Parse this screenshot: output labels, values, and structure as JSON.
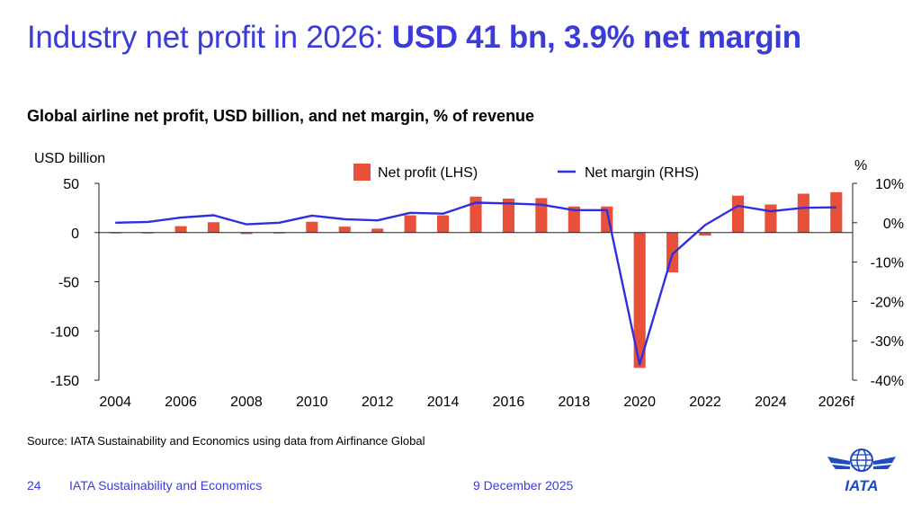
{
  "headline": {
    "normal": "Industry net profit in 2026: ",
    "bold": "USD 41 bn, 3.9% net margin"
  },
  "subtitle": "Global airline net profit, USD billion, and net margin, % of revenue",
  "source": "Source: IATA Sustainability and Economics using data from Airfinance Global",
  "footer": {
    "page_number": "24",
    "department": "IATA Sustainability and Economics",
    "date": "9 December 2025",
    "logo_text": "IATA"
  },
  "colors": {
    "headline": "#3b3bd8",
    "bars": "#e8503a",
    "line": "#2f2fe0",
    "footer": "#3b3bd8",
    "logo": "#1f4bc4"
  },
  "chart_data": {
    "type": "bar",
    "title": "Global airline net profit, USD billion, and net margin, % of revenue",
    "categories": [
      "2004",
      "2005",
      "2006",
      "2007",
      "2008",
      "2009",
      "2010",
      "2011",
      "2012",
      "2013",
      "2014",
      "2015",
      "2016",
      "2017",
      "2018",
      "2019",
      "2020",
      "2021",
      "2022",
      "2023",
      "2024",
      "2025",
      "2026f"
    ],
    "x_tick_labels": [
      "2004",
      "2006",
      "2008",
      "2010",
      "2012",
      "2014",
      "2016",
      "2018",
      "2020",
      "2022",
      "2024",
      "2026f"
    ],
    "y_left": {
      "label": "USD billion",
      "range": [
        -150,
        50
      ],
      "ticks": [
        50,
        0,
        -50,
        -100,
        -150
      ],
      "tick_labels": [
        "50",
        "0",
        "-50",
        "-100",
        "-150"
      ]
    },
    "y_right": {
      "label": "%",
      "range": [
        -40,
        10
      ],
      "ticks": [
        10,
        0,
        -10,
        -20,
        -30,
        -40
      ],
      "tick_labels": [
        "10%",
        "0%",
        "-10%",
        "-20%",
        "-30%",
        "-40%"
      ]
    },
    "series": [
      {
        "name": "Net profit (LHS)",
        "type": "bar",
        "axis": "left",
        "values": [
          -0.5,
          -0.8,
          6.5,
          10.5,
          -1.5,
          -0.5,
          11,
          6,
          4,
          17.5,
          17.5,
          36.5,
          34.5,
          35,
          26.5,
          26.5,
          -137.5,
          -40.5,
          -3,
          37.5,
          28.5,
          39.5,
          41
        ]
      },
      {
        "name": "Net margin (RHS)",
        "type": "line",
        "axis": "right",
        "values": [
          0,
          0.2,
          1.3,
          1.9,
          -0.4,
          0,
          1.8,
          0.9,
          0.6,
          2.5,
          2.3,
          5.1,
          4.9,
          4.6,
          3.2,
          3.2,
          -36,
          -8,
          -0.6,
          4.3,
          2.9,
          3.8,
          3.9
        ]
      }
    ],
    "legend": "top-center"
  }
}
